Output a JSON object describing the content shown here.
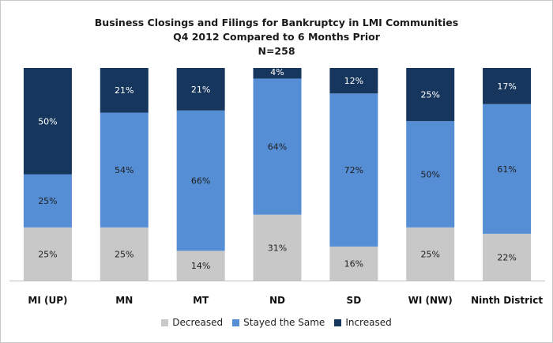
{
  "chart_data": {
    "type": "bar",
    "stacked": true,
    "percent": true,
    "title_lines": [
      "Business Closings and Filings for Bankruptcy  in LMI Communities",
      "Q4 2012 Compared to 6 Months Prior",
      "N=258"
    ],
    "categories": [
      "MI (UP)",
      "MN",
      "MT",
      "ND",
      "SD",
      "WI (NW)",
      "Ninth District"
    ],
    "series": [
      {
        "name": "Decreased",
        "color": "#c8c8c8",
        "values": [
          25,
          25,
          14,
          31,
          16,
          25,
          22
        ]
      },
      {
        "name": "Stayed the Same",
        "color": "#558ed5",
        "values": [
          25,
          54,
          66,
          64,
          72,
          50,
          61
        ]
      },
      {
        "name": "Increased",
        "color": "#17365d",
        "values": [
          50,
          21,
          21,
          4,
          12,
          25,
          17
        ]
      }
    ],
    "data_labels": [
      [
        "25%",
        "25%",
        "14%",
        "31%",
        "16%",
        "25%",
        "22%"
      ],
      [
        "25%",
        "54%",
        "66%",
        "64%",
        "72%",
        "50%",
        "61%"
      ],
      [
        "50%",
        "21%",
        "21%",
        "4%",
        "12%",
        "25%",
        "17%"
      ]
    ],
    "ylim": [
      0,
      100
    ],
    "legend_position": "bottom",
    "grid": false
  }
}
